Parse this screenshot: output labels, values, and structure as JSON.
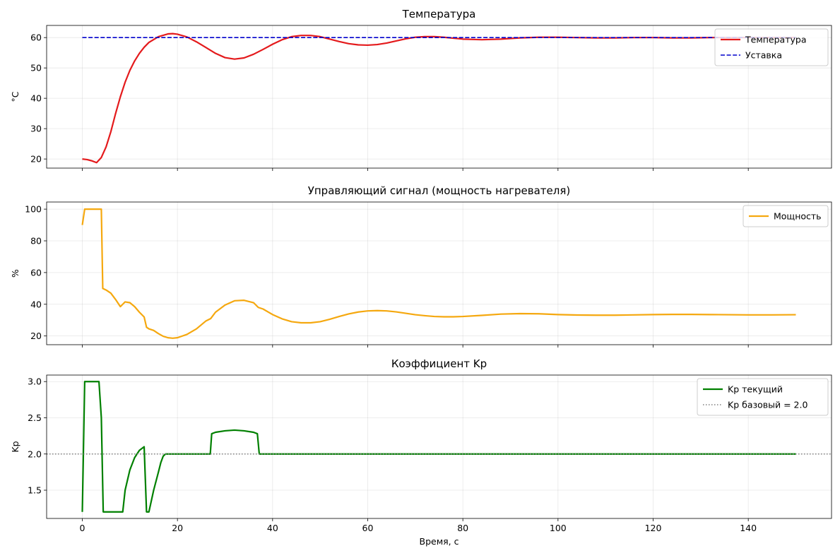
{
  "chart_data": [
    {
      "type": "line",
      "title": "Температура",
      "xlabel": "",
      "ylabel": "°C",
      "xlim": [
        -7.5,
        157.5
      ],
      "ylim": [
        17,
        64
      ],
      "xticks": [
        0,
        20,
        40,
        60,
        80,
        100,
        120,
        140
      ],
      "yticks": [
        20,
        30,
        40,
        50,
        60
      ],
      "show_x_tick_labels": false,
      "grid": true,
      "legend": "top-right",
      "series": [
        {
          "name": "Температура",
          "color": "#e41a1c",
          "style": "solid",
          "x": [
            0,
            1,
            2,
            3,
            4,
            5,
            6,
            7,
            8,
            9,
            10,
            11,
            12,
            13,
            14,
            16,
            18,
            19,
            20,
            22,
            24,
            26,
            28,
            30,
            32,
            34,
            36,
            38,
            40,
            42,
            44,
            46,
            48,
            50,
            52,
            54,
            56,
            58,
            60,
            62,
            64,
            66,
            68,
            70,
            72,
            74,
            76,
            78,
            80,
            84,
            88,
            92,
            96,
            100,
            104,
            108,
            112,
            116,
            120,
            124,
            128,
            132,
            136,
            140,
            145,
            150
          ],
          "y": [
            20,
            19.8,
            19.4,
            18.8,
            20.5,
            24,
            29,
            35,
            40.5,
            45.3,
            49.2,
            52.3,
            54.8,
            56.8,
            58.4,
            60.3,
            61.2,
            61.3,
            61.1,
            60.2,
            58.6,
            56.7,
            54.8,
            53.4,
            52.9,
            53.3,
            54.5,
            56.1,
            57.8,
            59.3,
            60.3,
            60.7,
            60.7,
            60.3,
            59.5,
            58.7,
            58,
            57.6,
            57.5,
            57.7,
            58.2,
            58.9,
            59.6,
            60.1,
            60.3,
            60.3,
            60.1,
            59.8,
            59.5,
            59.3,
            59.5,
            59.9,
            60.1,
            60.1,
            60,
            59.9,
            59.9,
            60,
            60,
            59.9,
            59.9,
            60,
            60,
            60,
            60,
            60
          ]
        },
        {
          "name": "Уставка",
          "color": "#0000cc",
          "style": "dashed",
          "x": [
            0,
            150
          ],
          "y": [
            60,
            60
          ]
        }
      ]
    },
    {
      "type": "line",
      "title": "Управляющий сигнал (мощность нагревателя)",
      "xlabel": "",
      "ylabel": "%",
      "xlim": [
        -7.5,
        157.5
      ],
      "ylim": [
        14.5,
        104.5
      ],
      "xticks": [
        0,
        20,
        40,
        60,
        80,
        100,
        120,
        140
      ],
      "yticks": [
        20,
        40,
        60,
        80,
        100
      ],
      "show_x_tick_labels": false,
      "grid": true,
      "legend": "top-right",
      "series": [
        {
          "name": "Мощность",
          "color": "#f5a80f",
          "style": "solid",
          "x": [
            0,
            0.5,
            1,
            2,
            3,
            4,
            4.3,
            5,
            6,
            7,
            8,
            9,
            10,
            11,
            12,
            13,
            13.5,
            14,
            15,
            16,
            17,
            18,
            19,
            20,
            22,
            24,
            26,
            27,
            28,
            30,
            32,
            34,
            36,
            37,
            38,
            40,
            42,
            44,
            46,
            48,
            50,
            52,
            54,
            56,
            58,
            60,
            62,
            64,
            66,
            68,
            70,
            72,
            74,
            76,
            78,
            80,
            84,
            88,
            92,
            96,
            100,
            104,
            108,
            112,
            116,
            120,
            124,
            128,
            132,
            136,
            140,
            145,
            150
          ],
          "y": [
            90,
            100,
            100,
            100,
            100,
            100,
            50,
            49,
            47,
            43,
            38.5,
            41.5,
            41,
            38.5,
            35,
            32,
            25.5,
            24.5,
            23.5,
            21.5,
            19.8,
            18.9,
            18.6,
            18.9,
            21,
            24.5,
            29.5,
            31,
            35,
            39.5,
            42.2,
            42.5,
            41,
            38,
            37,
            33.5,
            30.8,
            29,
            28.3,
            28.3,
            29,
            30.5,
            32.3,
            33.9,
            35.1,
            35.8,
            36,
            35.8,
            35.2,
            34.3,
            33.4,
            32.8,
            32.3,
            32.1,
            32.1,
            32.3,
            33,
            33.8,
            34.1,
            34,
            33.5,
            33.2,
            33.1,
            33.1,
            33.3,
            33.5,
            33.6,
            33.6,
            33.5,
            33.4,
            33.3,
            33.3,
            33.4
          ]
        }
      ]
    },
    {
      "type": "line",
      "title": "Коэффициент Kp",
      "xlabel": "Время, с",
      "ylabel": "Kp",
      "xlim": [
        -7.5,
        157.5
      ],
      "ylim": [
        1.11,
        3.09
      ],
      "xticks": [
        0,
        20,
        40,
        60,
        80,
        100,
        120,
        140
      ],
      "yticks": [
        1.5,
        2.0,
        2.5,
        3.0
      ],
      "show_x_tick_labels": true,
      "grid": true,
      "legend": "top-right",
      "series": [
        {
          "name": "Kp текущий",
          "color": "#008000",
          "style": "solid",
          "x": [
            0,
            0.5,
            1,
            2,
            3,
            3.5,
            4,
            4.4,
            5,
            6,
            7,
            8,
            8.5,
            9,
            10,
            11,
            12,
            13,
            13.5,
            14,
            15,
            16,
            16.5,
            17,
            17.5,
            20,
            24,
            26.9,
            27.2,
            28,
            30,
            32,
            34,
            36,
            36.8,
            37.2,
            40,
            60,
            80,
            100,
            120,
            140,
            150
          ],
          "y": [
            1.2,
            3.0,
            3.0,
            3.0,
            3.0,
            3.0,
            2.5,
            1.2,
            1.2,
            1.2,
            1.2,
            1.2,
            1.2,
            1.5,
            1.78,
            1.95,
            2.05,
            2.1,
            1.2,
            1.2,
            1.5,
            1.75,
            1.88,
            1.97,
            2.0,
            2.0,
            2.0,
            2.0,
            2.28,
            2.3,
            2.32,
            2.33,
            2.32,
            2.3,
            2.28,
            2.0,
            2.0,
            2.0,
            2.0,
            2.0,
            2.0,
            2.0,
            2.0
          ]
        },
        {
          "name": "Kp базовый = 2.0",
          "color": "#808080",
          "style": "dotted",
          "x": [
            -7.5,
            157.5
          ],
          "y": [
            2.0,
            2.0
          ]
        }
      ]
    }
  ]
}
